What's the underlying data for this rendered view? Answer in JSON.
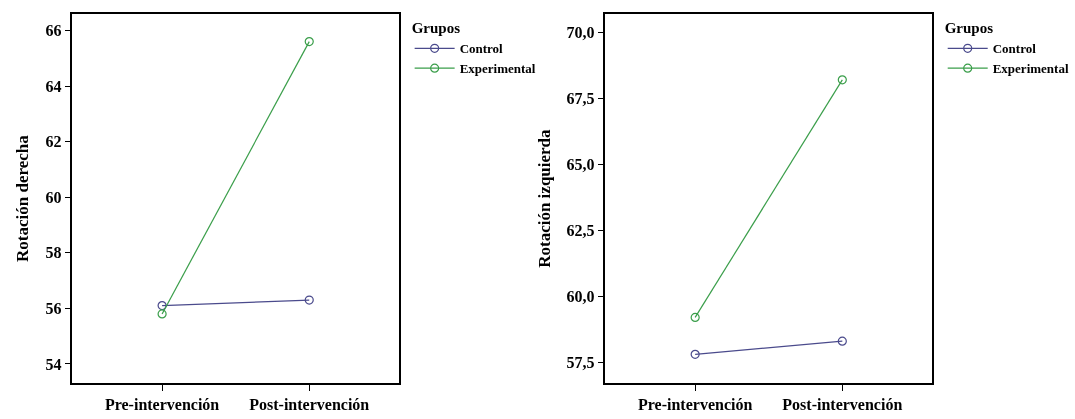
{
  "chart_data": [
    {
      "type": "line",
      "ylabel": "Rotación derecha",
      "legend_title": "Grupos",
      "legend": "top right",
      "marker": "circle",
      "line_style": "solid",
      "categories": [
        "Pre-intervención",
        "Post-intervención"
      ],
      "series": [
        {
          "name": "Control",
          "color": "#4a4a8c",
          "values": [
            56.1,
            56.3
          ]
        },
        {
          "name": "Experimental",
          "color": "#3a9e4a",
          "values": [
            55.8,
            65.6
          ]
        }
      ],
      "ylim": [
        53.3,
        66.6
      ],
      "yticks": [
        54,
        56,
        58,
        60,
        62,
        64,
        66
      ]
    },
    {
      "type": "line",
      "ylabel": "Rotación izquierda",
      "legend_title": "Grupos",
      "legend": "top right",
      "marker": "circle",
      "line_style": "solid",
      "categories": [
        "Pre-intervención",
        "Post-intervención"
      ],
      "series": [
        {
          "name": "Control",
          "color": "#4a4a8c",
          "values": [
            57.8,
            58.3
          ]
        },
        {
          "name": "Experimental",
          "color": "#3a9e4a",
          "values": [
            59.2,
            68.2
          ]
        }
      ],
      "ylim": [
        56.7,
        70.7
      ],
      "yticks": [
        {
          "value": 57.5,
          "label": "57,5"
        },
        {
          "value": 60,
          "label": "60,0"
        },
        {
          "value": 62.5,
          "label": "62,5"
        },
        {
          "value": 65,
          "label": "65,0"
        },
        {
          "value": 67.5,
          "label": "67,5"
        },
        {
          "value": 70,
          "label": "70,0"
        }
      ]
    }
  ]
}
